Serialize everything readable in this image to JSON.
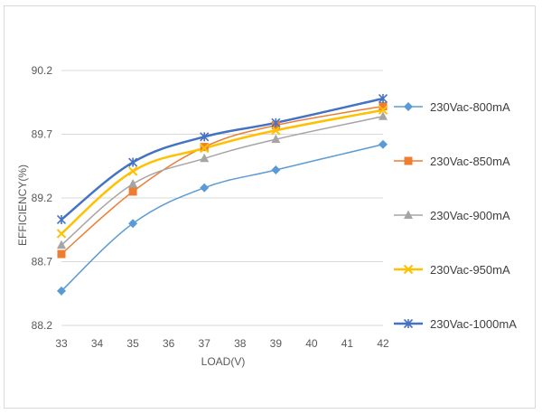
{
  "chart_data": {
    "type": "line",
    "title": "",
    "xlabel": "LOAD(V)",
    "ylabel": "EFFICIENCY(%)",
    "x": [
      33,
      35,
      37,
      39,
      42
    ],
    "xticks": [
      "33",
      "34",
      "35",
      "36",
      "37",
      "38",
      "39",
      "40",
      "41",
      "42"
    ],
    "yticks": [
      "88.2",
      "88.7",
      "89.2",
      "89.7",
      "90.2"
    ],
    "xlim": [
      33,
      42
    ],
    "ylim": [
      88.2,
      90.2
    ],
    "grid": "horizontal",
    "legend_position": "right",
    "smooth": true,
    "series": [
      {
        "name": "230Vac-800mA",
        "color": "#5b9bd5",
        "marker": "diamond",
        "values": [
          88.47,
          89.0,
          89.28,
          89.42,
          89.62
        ]
      },
      {
        "name": "230Vac-850mA",
        "color": "#ed7d31",
        "marker": "square",
        "values": [
          88.76,
          89.25,
          89.6,
          89.77,
          89.92
        ]
      },
      {
        "name": "230Vac-900mA",
        "color": "#a5a5a5",
        "marker": "triangle",
        "values": [
          88.83,
          89.31,
          89.51,
          89.66,
          89.84
        ]
      },
      {
        "name": "230Vac-950mA",
        "color": "#ffc000",
        "marker": "x",
        "values": [
          88.92,
          89.41,
          89.59,
          89.73,
          89.89
        ]
      },
      {
        "name": "230Vac-1000mA",
        "color": "#4472c4",
        "marker": "star",
        "values": [
          89.03,
          89.48,
          89.68,
          89.79,
          89.98
        ]
      }
    ]
  }
}
